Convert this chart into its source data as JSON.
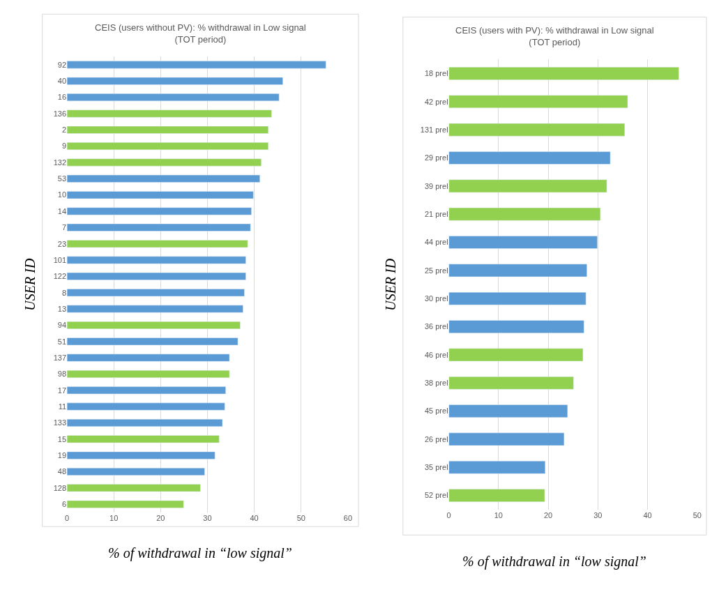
{
  "chart_data": [
    {
      "type": "bar",
      "orientation": "horizontal",
      "title": "CEIS (users without PV): % withdrawal in Low signal (TOT period)",
      "xlabel": "% of withdrawal in “low signal”",
      "ylabel": "USER ID",
      "categories": [
        "92",
        "40",
        "16",
        "136",
        "2",
        "9",
        "132",
        "53",
        "10",
        "14",
        "7",
        "23",
        "101",
        "122",
        "8",
        "13",
        "94",
        "51",
        "137",
        "98",
        "17",
        "11",
        "133",
        "15",
        "19",
        "48",
        "128",
        "6"
      ],
      "values": [
        55.3,
        46.1,
        45.3,
        43.7,
        43.0,
        43.0,
        41.5,
        41.2,
        39.8,
        39.4,
        39.2,
        38.6,
        38.2,
        38.2,
        37.9,
        37.6,
        37.0,
        36.5,
        34.7,
        34.7,
        33.9,
        33.7,
        33.2,
        32.5,
        31.6,
        29.4,
        28.5,
        24.9
      ],
      "colors": [
        "#5b9bd5",
        "#5b9bd5",
        "#5b9bd5",
        "#92d050",
        "#92d050",
        "#92d050",
        "#92d050",
        "#5b9bd5",
        "#5b9bd5",
        "#5b9bd5",
        "#5b9bd5",
        "#92d050",
        "#5b9bd5",
        "#5b9bd5",
        "#5b9bd5",
        "#5b9bd5",
        "#92d050",
        "#5b9bd5",
        "#5b9bd5",
        "#92d050",
        "#5b9bd5",
        "#5b9bd5",
        "#5b9bd5",
        "#92d050",
        "#5b9bd5",
        "#5b9bd5",
        "#92d050",
        "#92d050"
      ],
      "xlim": [
        0,
        60
      ],
      "xticks": [
        0,
        10,
        20,
        30,
        40,
        50,
        60
      ],
      "grid": "x"
    },
    {
      "type": "bar",
      "orientation": "horizontal",
      "title": "CEIS (users with PV): % withdrawal in Low signal (TOT period)",
      "xlabel": "% of withdrawal in “low signal”",
      "ylabel": "USER ID",
      "categories": [
        "18 prel",
        "42 prel",
        "131 prel",
        "29 prel",
        "39 prel",
        "21 prel",
        "44 prel",
        "25 prel",
        "30 prel",
        "36 prel",
        "46 prel",
        "38 prel",
        "45 prel",
        "26 prel",
        "35 prel",
        "52 prel"
      ],
      "values": [
        46.3,
        36.0,
        35.4,
        32.5,
        31.8,
        30.5,
        29.9,
        27.8,
        27.6,
        27.2,
        27.0,
        25.1,
        23.9,
        23.2,
        19.4,
        19.3
      ],
      "colors": [
        "#92d050",
        "#92d050",
        "#92d050",
        "#5b9bd5",
        "#92d050",
        "#92d050",
        "#5b9bd5",
        "#5b9bd5",
        "#5b9bd5",
        "#5b9bd5",
        "#92d050",
        "#92d050",
        "#5b9bd5",
        "#5b9bd5",
        "#5b9bd5",
        "#92d050"
      ],
      "xlim": [
        0,
        50
      ],
      "xticks": [
        0,
        10,
        20,
        30,
        40,
        50
      ],
      "grid": "x"
    }
  ]
}
